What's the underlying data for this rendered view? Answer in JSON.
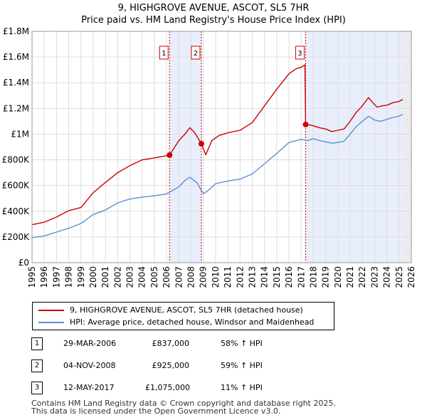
{
  "title_line1": "9, HIGHGROVE AVENUE, ASCOT, SL5 7HR",
  "title_line2": "Price paid vs. HM Land Registry's House Price Index (HPI)",
  "chart_data": {
    "type": "line",
    "title": "9, HIGHGROVE AVENUE, ASCOT, SL5 7HR — Price paid vs. HM Land Registry's House Price Index (HPI)",
    "xlabel": "",
    "ylabel": "",
    "xlim": [
      1995,
      2026
    ],
    "ylim": [
      0,
      1800000
    ],
    "x_ticks": [
      "1995",
      "1996",
      "1997",
      "1998",
      "1999",
      "2000",
      "2001",
      "2002",
      "2003",
      "2004",
      "2005",
      "2006",
      "2007",
      "2008",
      "2009",
      "2010",
      "2011",
      "2012",
      "2013",
      "2014",
      "2015",
      "2016",
      "2017",
      "2018",
      "2019",
      "2020",
      "2021",
      "2022",
      "2023",
      "2024",
      "2025",
      "2026"
    ],
    "y_ticks": [
      {
        "value": 0,
        "label": "£0"
      },
      {
        "value": 200000,
        "label": "£200K"
      },
      {
        "value": 400000,
        "label": "£400K"
      },
      {
        "value": 600000,
        "label": "£600K"
      },
      {
        "value": 800000,
        "label": "£800K"
      },
      {
        "value": 1000000,
        "label": "£1M"
      },
      {
        "value": 1200000,
        "label": "£1.2M"
      },
      {
        "value": 1400000,
        "label": "£1.4M"
      },
      {
        "value": 1600000,
        "label": "£1.6M"
      },
      {
        "value": 1800000,
        "label": "£1.8M"
      }
    ],
    "grid": true,
    "shaded_periods": [
      [
        2006.24,
        2008.84
      ],
      [
        2017.36,
        2025.3
      ]
    ],
    "hatched_from": 2025.3,
    "series": [
      {
        "name": "9, HIGHGROVE AVENUE, ASCOT, SL5 7HR (detached house)",
        "color": "#cc0000",
        "points": [
          [
            1995.0,
            295000
          ],
          [
            1996.0,
            315000
          ],
          [
            1997.0,
            355000
          ],
          [
            1998.0,
            405000
          ],
          [
            1999.0,
            430000
          ],
          [
            2000.0,
            545000
          ],
          [
            2001.0,
            625000
          ],
          [
            2002.0,
            700000
          ],
          [
            2003.0,
            755000
          ],
          [
            2004.0,
            800000
          ],
          [
            2005.0,
            815000
          ],
          [
            2006.24,
            837000
          ],
          [
            2007.0,
            950000
          ],
          [
            2007.5,
            1000000
          ],
          [
            2007.9,
            1050000
          ],
          [
            2008.3,
            1010000
          ],
          [
            2008.84,
            925000
          ],
          [
            2009.2,
            840000
          ],
          [
            2009.7,
            950000
          ],
          [
            2010.3,
            990000
          ],
          [
            2011.0,
            1010000
          ],
          [
            2012.0,
            1030000
          ],
          [
            2013.0,
            1090000
          ],
          [
            2014.0,
            1220000
          ],
          [
            2015.0,
            1350000
          ],
          [
            2016.0,
            1470000
          ],
          [
            2016.6,
            1510000
          ],
          [
            2017.0,
            1520000
          ],
          [
            2017.3,
            1540000
          ],
          [
            2017.36,
            1075000
          ],
          [
            2017.8,
            1070000
          ],
          [
            2018.5,
            1050000
          ],
          [
            2019.0,
            1040000
          ],
          [
            2019.5,
            1020000
          ],
          [
            2020.0,
            1030000
          ],
          [
            2020.5,
            1040000
          ],
          [
            2021.0,
            1100000
          ],
          [
            2021.5,
            1170000
          ],
          [
            2022.0,
            1220000
          ],
          [
            2022.5,
            1285000
          ],
          [
            2022.8,
            1250000
          ],
          [
            2023.2,
            1210000
          ],
          [
            2023.6,
            1220000
          ],
          [
            2024.0,
            1225000
          ],
          [
            2024.5,
            1245000
          ],
          [
            2025.0,
            1255000
          ],
          [
            2025.3,
            1270000
          ]
        ]
      },
      {
        "name": "HPI: Average price, detached house, Windsor and Maidenhead",
        "color": "#5b8fd1",
        "points": [
          [
            1995.0,
            195000
          ],
          [
            1996.0,
            208000
          ],
          [
            1997.0,
            238000
          ],
          [
            1998.0,
            268000
          ],
          [
            1999.0,
            305000
          ],
          [
            2000.0,
            375000
          ],
          [
            2001.0,
            410000
          ],
          [
            2002.0,
            465000
          ],
          [
            2003.0,
            495000
          ],
          [
            2004.0,
            510000
          ],
          [
            2005.0,
            520000
          ],
          [
            2006.0,
            535000
          ],
          [
            2007.0,
            590000
          ],
          [
            2007.5,
            640000
          ],
          [
            2007.9,
            665000
          ],
          [
            2008.5,
            620000
          ],
          [
            2009.0,
            535000
          ],
          [
            2009.5,
            570000
          ],
          [
            2010.0,
            615000
          ],
          [
            2011.0,
            635000
          ],
          [
            2012.0,
            650000
          ],
          [
            2013.0,
            690000
          ],
          [
            2014.0,
            770000
          ],
          [
            2015.0,
            850000
          ],
          [
            2016.0,
            935000
          ],
          [
            2017.0,
            960000
          ],
          [
            2017.5,
            950000
          ],
          [
            2018.0,
            965000
          ],
          [
            2018.5,
            950000
          ],
          [
            2019.0,
            940000
          ],
          [
            2019.5,
            930000
          ],
          [
            2020.0,
            935000
          ],
          [
            2020.5,
            945000
          ],
          [
            2021.0,
            1000000
          ],
          [
            2021.5,
            1060000
          ],
          [
            2022.0,
            1100000
          ],
          [
            2022.5,
            1140000
          ],
          [
            2023.0,
            1110000
          ],
          [
            2023.5,
            1100000
          ],
          [
            2024.0,
            1115000
          ],
          [
            2024.5,
            1130000
          ],
          [
            2025.0,
            1140000
          ],
          [
            2025.3,
            1155000
          ]
        ]
      }
    ],
    "sale_markers": [
      {
        "label": "1",
        "x": 2006.24,
        "y": 837000
      },
      {
        "label": "2",
        "x": 2008.84,
        "y": 925000
      },
      {
        "label": "3",
        "x": 2017.36,
        "y": 1075000
      }
    ]
  },
  "legend": {
    "items": [
      {
        "label": "9, HIGHGROVE AVENUE, ASCOT, SL5 7HR (detached house)",
        "color": "#cc0000"
      },
      {
        "label": "HPI: Average price, detached house, Windsor and Maidenhead",
        "color": "#5b8fd1"
      }
    ]
  },
  "sales": [
    {
      "num": "1",
      "date": "29-MAR-2006",
      "price": "£837,000",
      "hpi": "58% ↑ HPI"
    },
    {
      "num": "2",
      "date": "04-NOV-2008",
      "price": "£925,000",
      "hpi": "59% ↑ HPI"
    },
    {
      "num": "3",
      "date": "12-MAY-2017",
      "price": "£1,075,000",
      "hpi": "11% ↑ HPI"
    }
  ],
  "footer": {
    "line1": "Contains HM Land Registry data © Crown copyright and database right 2025.",
    "line2": "This data is licensed under the Open Government Licence v3.0."
  }
}
